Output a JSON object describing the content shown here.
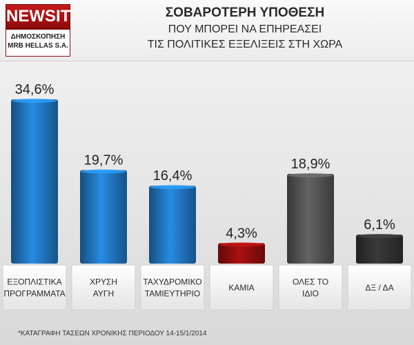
{
  "logo": {
    "brand": "NEWSIT",
    "line1": "ΔΗΜΟΣΚΟΠΗΣΗ",
    "line2": "MRB HELLAS S.A."
  },
  "header": {
    "title": "ΣΟΒΑΡΟΤΕΡΗ ΥΠΟΘΕΣΗ",
    "subtitle1": "ΠΟΥ ΜΠΟΡΕΙ ΝΑ ΕΠΗΡΕΑΣΕΙ",
    "subtitle2": "ΤΙΣ ΠΟΛΙΤΙΚΕΣ ΕΞΕΛΙΞΕΙΣ ΣΤΗ ΧΩΡΑ"
  },
  "footnote": "*ΚΑΤΑΓΡΑΦΗ ΤΑΣΕΩΝ ΧΡΟΝΙΚΗΣ ΠΕΡΙΟΔΟΥ 14-15/1/2014",
  "chart_data": {
    "type": "bar",
    "categories": [
      [
        "ΕΞΟΠΛΙΣΤΙΚΑ",
        "ΠΡΟΓΡΑΜΜΑΤΑ"
      ],
      [
        "ΧΡΥΣΗ",
        "ΑΥΓΗ"
      ],
      [
        "ΤΑΧΥΔΡΟΜΙΚΟ",
        "ΤΑΜΙΕΥΤΗΡΙΟ"
      ],
      [
        "ΚΑΜΙΑ"
      ],
      [
        "ΟΛΕΣ ΤΟ",
        "ΙΔΙΟ"
      ],
      [
        "ΔΞ / ΔΑ"
      ]
    ],
    "values": [
      34.6,
      19.7,
      16.4,
      4.3,
      18.9,
      6.1
    ],
    "value_labels": [
      "34,6%",
      "19,7%",
      "16,4%",
      "4,3%",
      "18,9%",
      "6,1%"
    ],
    "colors": [
      "#1f6fb5",
      "#1f6fb5",
      "#1f6fb5",
      "#8a0d0d",
      "#4f4f4f",
      "#2e2e2e"
    ],
    "ylim": [
      0,
      34.6
    ]
  }
}
